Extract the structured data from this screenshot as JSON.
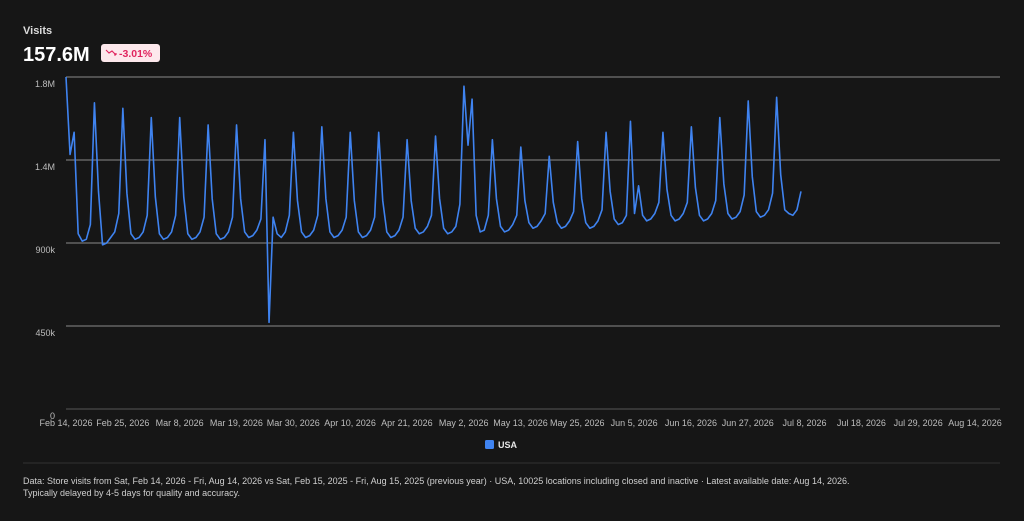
{
  "header": {
    "label": "Visits",
    "total": "157.6M",
    "change": "-3.01%"
  },
  "chart_data": {
    "type": "line",
    "xticks": [
      "Feb 14, 2026",
      "Feb 25, 2026",
      "Mar 8, 2026",
      "Mar 19, 2026",
      "Mar 30, 2026",
      "Apr 10, 2026",
      "Apr 21, 2026",
      "May 2, 2026",
      "May 13, 2026",
      "May 25, 2026",
      "Jun 5, 2026",
      "Jun 16, 2026",
      "Jun 27, 2026",
      "Jul 8, 2026",
      "Jul 18, 2026",
      "Jul 29, 2026",
      "Aug 14, 2026"
    ],
    "ylim": [
      0,
      1800000
    ],
    "yticks": [
      0,
      {
        "value": 450000,
        "label": "450k"
      },
      {
        "value": 900000,
        "label": "900k"
      },
      {
        "value": 1350000,
        "label": "1.4M"
      },
      {
        "value": 1800000,
        "label": "1.8M"
      }
    ],
    "grid": true,
    "series": [
      {
        "name": "USA",
        "color": "#3f83f0",
        "values": [
          1800000,
          1380000,
          1500000,
          950000,
          910000,
          920000,
          1000000,
          1660000,
          1180000,
          890000,
          900000,
          930000,
          960000,
          1060000,
          1630000,
          1170000,
          950000,
          920000,
          930000,
          960000,
          1050000,
          1580000,
          1150000,
          950000,
          920000,
          930000,
          960000,
          1050000,
          1580000,
          1150000,
          950000,
          920000,
          930000,
          960000,
          1040000,
          1540000,
          1140000,
          950000,
          920000,
          930000,
          960000,
          1040000,
          1540000,
          1140000,
          960000,
          930000,
          940000,
          970000,
          1030000,
          1460000,
          470000,
          1040000,
          950000,
          930000,
          960000,
          1050000,
          1500000,
          1130000,
          960000,
          930000,
          940000,
          970000,
          1050000,
          1530000,
          1140000,
          960000,
          930000,
          940000,
          970000,
          1040000,
          1500000,
          1130000,
          960000,
          930000,
          940000,
          970000,
          1040000,
          1500000,
          1130000,
          960000,
          930000,
          940000,
          970000,
          1040000,
          1460000,
          1130000,
          980000,
          950000,
          960000,
          990000,
          1050000,
          1480000,
          1140000,
          980000,
          950000,
          960000,
          990000,
          1110000,
          1750000,
          1430000,
          1680000,
          1050000,
          960000,
          970000,
          1050000,
          1460000,
          1140000,
          990000,
          960000,
          970000,
          1000000,
          1050000,
          1420000,
          1130000,
          1010000,
          980000,
          990000,
          1020000,
          1060000,
          1370000,
          1120000,
          1010000,
          980000,
          990000,
          1020000,
          1070000,
          1450000,
          1140000,
          1010000,
          980000,
          990000,
          1020000,
          1080000,
          1500000,
          1180000,
          1030000,
          1000000,
          1010000,
          1050000,
          1560000,
          1060000,
          1210000,
          1050000,
          1020000,
          1030000,
          1060000,
          1120000,
          1500000,
          1190000,
          1050000,
          1020000,
          1030000,
          1060000,
          1120000,
          1530000,
          1200000,
          1050000,
          1020000,
          1030000,
          1060000,
          1130000,
          1580000,
          1220000,
          1060000,
          1030000,
          1040000,
          1070000,
          1160000,
          1670000,
          1260000,
          1070000,
          1040000,
          1050000,
          1080000,
          1170000,
          1690000,
          1270000,
          1080000,
          1060000,
          1050000,
          1080000,
          1180000
        ]
      }
    ]
  },
  "footer": [
    "Data: Store visits from Sat, Feb 14, 2026 - Fri, Aug 14, 2026 vs Sat, Feb 15, 2025 - Fri, Aug 15, 2025 (previous year) · USA, 10025 locations including closed and inactive · Latest available date: Aug 14, 2026.",
    "Typically delayed by 4-5 days for quality and accuracy."
  ]
}
